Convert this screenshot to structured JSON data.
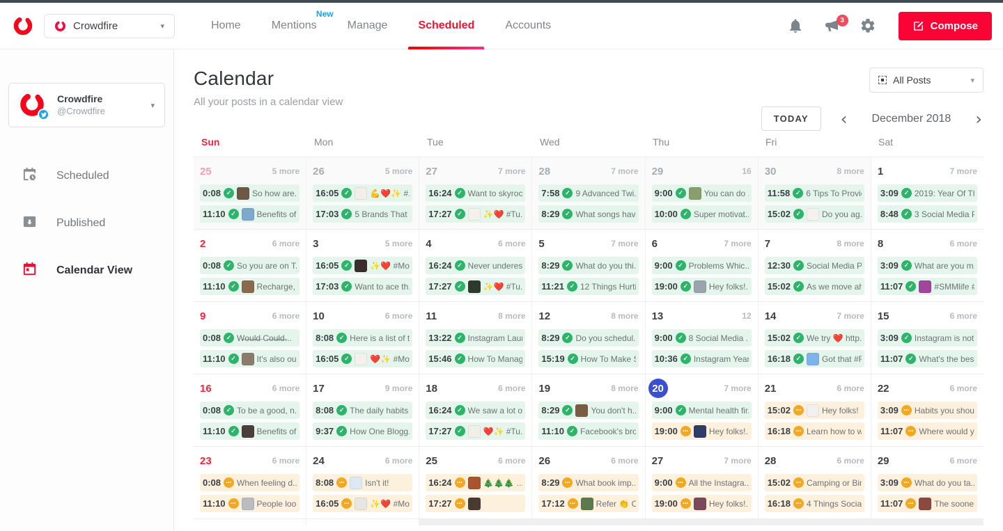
{
  "topbar": {
    "account_label": "Crowdfire",
    "nav": [
      {
        "label": "Home",
        "active": false
      },
      {
        "label": "Mentions",
        "active": false,
        "badge": "New"
      },
      {
        "label": "Manage",
        "active": false
      },
      {
        "label": "Scheduled",
        "active": true
      },
      {
        "label": "Accounts",
        "active": false
      }
    ],
    "announcements_badge": "3",
    "compose_label": "Compose"
  },
  "sidebar": {
    "account": {
      "name": "Crowdfire",
      "handle": "@Crowdfire"
    },
    "items": [
      {
        "label": "Scheduled",
        "icon": "calendar-clock-icon",
        "active": false
      },
      {
        "label": "Published",
        "icon": "published-box-icon",
        "active": false
      },
      {
        "label": "Calendar View",
        "icon": "calendar-icon",
        "active": true
      }
    ]
  },
  "header": {
    "title": "Calendar",
    "subtitle": "All your posts in a calendar view",
    "filter_label": "All Posts",
    "today_label": "TODAY",
    "prev_icon": "‹",
    "next_icon": "›",
    "month_label": "December 2018"
  },
  "calendar": {
    "day_headers": [
      "Sun",
      "Mon",
      "Tue",
      "Wed",
      "Thu",
      "Fri",
      "Sat"
    ],
    "weeks": [
      [
        {
          "date": "25",
          "kind": "muted-sun",
          "more": "5 more",
          "posts": [
            {
              "time": "0:08",
              "status": "done",
              "thumb": "#6b5846",
              "text": "So how are..."
            },
            {
              "time": "11:10",
              "status": "done",
              "thumb": "#7fa8cc",
              "text": "Benefits of r..."
            }
          ]
        },
        {
          "date": "26",
          "kind": "muted",
          "more": "5 more",
          "posts": [
            {
              "time": "16:05",
              "status": "done",
              "thumb": "#f2efe9",
              "text": "💪❤️✨ #..."
            },
            {
              "time": "17:03",
              "status": "done",
              "thumb": null,
              "text": "5 Brands That ..."
            }
          ]
        },
        {
          "date": "27",
          "kind": "muted",
          "more": "7 more",
          "posts": [
            {
              "time": "16:24",
              "status": "done",
              "thumb": null,
              "text": "Want to skyroc..."
            },
            {
              "time": "17:27",
              "status": "done",
              "thumb": "#f4f1ec",
              "text": "✨❤️ #Tu..."
            }
          ]
        },
        {
          "date": "28",
          "kind": "muted",
          "more": "7 more",
          "posts": [
            {
              "time": "7:58",
              "status": "done",
              "thumb": null,
              "text": "9 Advanced Twi..."
            },
            {
              "time": "8:29",
              "status": "done",
              "thumb": null,
              "text": "What songs hav..."
            }
          ]
        },
        {
          "date": "29",
          "kind": "muted",
          "more": "16",
          "posts": [
            {
              "time": "9:00",
              "status": "done",
              "thumb": "#8a9e6b",
              "text": "You can do ..."
            },
            {
              "time": "10:00",
              "status": "done",
              "thumb": null,
              "text": "Super motivat..."
            }
          ]
        },
        {
          "date": "30",
          "kind": "muted",
          "more": "8 more",
          "posts": [
            {
              "time": "11:58",
              "status": "done",
              "thumb": null,
              "text": "6 Tips To Provid..."
            },
            {
              "time": "15:02",
              "status": "done",
              "thumb": "#f5f2ee",
              "text": "Do you ag..."
            }
          ]
        },
        {
          "date": "1",
          "kind": "normal",
          "more": "7 more",
          "posts": [
            {
              "time": "3:09",
              "status": "done",
              "thumb": null,
              "text": "2019: Year Of Th..."
            },
            {
              "time": "8:48",
              "status": "done",
              "thumb": null,
              "text": "3 Social Media P..."
            }
          ]
        }
      ],
      [
        {
          "date": "2",
          "kind": "sun",
          "more": "6 more",
          "posts": [
            {
              "time": "0:08",
              "status": "done",
              "thumb": null,
              "text": "So you are on T..."
            },
            {
              "time": "11:10",
              "status": "done",
              "thumb": "#8a6a4f",
              "text": "Recharge, it..."
            }
          ]
        },
        {
          "date": "3",
          "kind": "normal",
          "more": "5 more",
          "posts": [
            {
              "time": "16:05",
              "status": "done",
              "thumb": "#3a2e2c",
              "text": "✨❤️ #Mo..."
            },
            {
              "time": "17:03",
              "status": "done",
              "thumb": null,
              "text": "Want to ace th..."
            }
          ]
        },
        {
          "date": "4",
          "kind": "normal",
          "more": "6 more",
          "posts": [
            {
              "time": "16:24",
              "status": "done",
              "thumb": null,
              "text": "Never underest..."
            },
            {
              "time": "17:27",
              "status": "done",
              "thumb": "#2f3a2e",
              "text": "✨❤️ #Tu..."
            }
          ]
        },
        {
          "date": "5",
          "kind": "normal",
          "more": "7 more",
          "posts": [
            {
              "time": "8:29",
              "status": "done",
              "thumb": null,
              "text": "What do you thi..."
            },
            {
              "time": "11:21",
              "status": "done",
              "thumb": null,
              "text": "12 Things Hurtin..."
            }
          ]
        },
        {
          "date": "6",
          "kind": "normal",
          "more": "7 more",
          "posts": [
            {
              "time": "9:00",
              "status": "done",
              "thumb": null,
              "text": "Problems Whic..."
            },
            {
              "time": "19:00",
              "status": "done",
              "thumb": "#9aa4ad",
              "text": "Hey folks!..."
            }
          ]
        },
        {
          "date": "7",
          "kind": "normal",
          "more": "8 more",
          "posts": [
            {
              "time": "12:30",
              "status": "done",
              "thumb": null,
              "text": "Social Media Pr..."
            },
            {
              "time": "15:02",
              "status": "done",
              "thumb": null,
              "text": "As we move ah..."
            }
          ]
        },
        {
          "date": "8",
          "kind": "normal",
          "more": "6 more",
          "posts": [
            {
              "time": "3:09",
              "status": "done",
              "thumb": null,
              "text": "What are you m..."
            },
            {
              "time": "11:07",
              "status": "done",
              "thumb": "#a1479b",
              "text": "#SMMlife #..."
            }
          ]
        }
      ],
      [
        {
          "date": "9",
          "kind": "sun",
          "more": "6 more",
          "posts": [
            {
              "time": "0:08",
              "status": "done",
              "thumb": null,
              "text": "W̶o̶u̶l̶d̶ C̶o̶u̶l̶d̶..."
            },
            {
              "time": "11:10",
              "status": "done",
              "thumb": "#8c7a6a",
              "text": "It's also our ..."
            }
          ]
        },
        {
          "date": "10",
          "kind": "normal",
          "more": "6 more",
          "posts": [
            {
              "time": "8:08",
              "status": "done",
              "thumb": null,
              "text": "Here is a list of t..."
            },
            {
              "time": "16:05",
              "status": "done",
              "thumb": "#f4f1ec",
              "text": "❤️✨ #Mo..."
            }
          ]
        },
        {
          "date": "11",
          "kind": "normal",
          "more": "8 more",
          "posts": [
            {
              "time": "13:22",
              "status": "done",
              "thumb": null,
              "text": "Instagram Laun..."
            },
            {
              "time": "15:46",
              "status": "done",
              "thumb": null,
              "text": "How To Manag..."
            }
          ]
        },
        {
          "date": "12",
          "kind": "normal",
          "more": "8 more",
          "posts": [
            {
              "time": "8:29",
              "status": "done",
              "thumb": null,
              "text": "Do you schedul..."
            },
            {
              "time": "15:19",
              "status": "done",
              "thumb": null,
              "text": "How To Make S..."
            }
          ]
        },
        {
          "date": "13",
          "kind": "normal",
          "more": "12",
          "posts": [
            {
              "time": "9:00",
              "status": "done",
              "thumb": null,
              "text": "8 Social Media ..."
            },
            {
              "time": "10:36",
              "status": "done",
              "thumb": null,
              "text": "Instagram Year ..."
            }
          ]
        },
        {
          "date": "14",
          "kind": "normal",
          "more": "7 more",
          "posts": [
            {
              "time": "15:02",
              "status": "done",
              "thumb": null,
              "text": "We try ❤️ http..."
            },
            {
              "time": "16:18",
              "status": "done",
              "thumb": "#7db3e8",
              "text": "Got that #F..."
            }
          ]
        },
        {
          "date": "15",
          "kind": "normal",
          "more": "6 more",
          "posts": [
            {
              "time": "3:09",
              "status": "done",
              "thumb": null,
              "text": "Instagram is not ..."
            },
            {
              "time": "11:07",
              "status": "done",
              "thumb": null,
              "text": "What's the best..."
            }
          ]
        }
      ],
      [
        {
          "date": "16",
          "kind": "sun",
          "more": "6 more",
          "posts": [
            {
              "time": "0:08",
              "status": "done",
              "thumb": null,
              "text": "To be a good, n..."
            },
            {
              "time": "11:10",
              "status": "done",
              "thumb": "#4a3f3a",
              "text": "Benefits of ..."
            }
          ]
        },
        {
          "date": "17",
          "kind": "normal",
          "more": "9 more",
          "posts": [
            {
              "time": "8:08",
              "status": "done",
              "thumb": null,
              "text": "The daily habits ..."
            },
            {
              "time": "9:37",
              "status": "done",
              "thumb": null,
              "text": "How One Blogg..."
            }
          ]
        },
        {
          "date": "18",
          "kind": "normal",
          "more": "6 more",
          "posts": [
            {
              "time": "16:24",
              "status": "done",
              "thumb": null,
              "text": "We saw a lot of..."
            },
            {
              "time": "17:27",
              "status": "done",
              "thumb": "#f2efe9",
              "text": "❤️✨ #Tu..."
            }
          ]
        },
        {
          "date": "19",
          "kind": "normal",
          "more": "8 more",
          "posts": [
            {
              "time": "8:29",
              "status": "done",
              "thumb": "#7a5c44",
              "text": "You don't h..."
            },
            {
              "time": "11:10",
              "status": "done",
              "thumb": null,
              "text": "Facebook's bro..."
            }
          ]
        },
        {
          "date": "20",
          "kind": "today",
          "more": "7 more",
          "posts": [
            {
              "time": "9:00",
              "status": "done",
              "thumb": null,
              "text": "Mental health fir..."
            },
            {
              "time": "19:00",
              "status": "pending",
              "thumb": "#2e3d66",
              "text": "Hey folks!..."
            }
          ]
        },
        {
          "date": "21",
          "kind": "normal",
          "more": "6 more",
          "posts": [
            {
              "time": "15:02",
              "status": "pending",
              "thumb": "#f2f0ec",
              "text": "Hey folks! ..."
            },
            {
              "time": "16:18",
              "status": "pending",
              "thumb": null,
              "text": "Learn how to w..."
            }
          ]
        },
        {
          "date": "22",
          "kind": "normal",
          "more": "6 more",
          "posts": [
            {
              "time": "3:09",
              "status": "pending",
              "thumb": null,
              "text": "Habits you shoul..."
            },
            {
              "time": "11:07",
              "status": "pending",
              "thumb": null,
              "text": "Where would y..."
            }
          ]
        }
      ],
      [
        {
          "date": "23",
          "kind": "sun",
          "more": "6 more",
          "posts": [
            {
              "time": "0:08",
              "status": "pending",
              "thumb": null,
              "text": "When feeling d..."
            },
            {
              "time": "11:10",
              "status": "pending",
              "thumb": "#b9bdbf",
              "text": "People look..."
            }
          ]
        },
        {
          "date": "24",
          "kind": "normal",
          "more": "6 more",
          "posts": [
            {
              "time": "8:08",
              "status": "pending",
              "thumb": "#dce8f2",
              "text": "Isn't it!"
            },
            {
              "time": "16:05",
              "status": "pending",
              "thumb": "#e8e6e0",
              "text": "✨❤️ #Mo..."
            }
          ]
        },
        {
          "date": "25",
          "kind": "normal",
          "more": "6 more",
          "posts": [
            {
              "time": "16:24",
              "status": "pending",
              "thumb": "#a8542c",
              "text": "🎄🎄🎄 ..."
            },
            {
              "time": "17:27",
              "status": "pending",
              "thumb": "#4a3a34",
              "text": ""
            }
          ]
        },
        {
          "date": "26",
          "kind": "normal",
          "more": "6 more",
          "posts": [
            {
              "time": "8:29",
              "status": "pending",
              "thumb": null,
              "text": "What book imp..."
            },
            {
              "time": "17:12",
              "status": "pending",
              "thumb": "#5c7a4e",
              "text": "Refer 👏 Cr..."
            }
          ]
        },
        {
          "date": "27",
          "kind": "normal",
          "more": "7 more",
          "posts": [
            {
              "time": "9:00",
              "status": "pending",
              "thumb": null,
              "text": "All the Instagra..."
            },
            {
              "time": "19:00",
              "status": "pending",
              "thumb": "#7a4a5a",
              "text": "Hey folks!..."
            }
          ]
        },
        {
          "date": "28",
          "kind": "normal",
          "more": "6 more",
          "posts": [
            {
              "time": "15:02",
              "status": "pending",
              "thumb": null,
              "text": "Camping or Bin..."
            },
            {
              "time": "16:18",
              "status": "pending",
              "thumb": null,
              "text": "4 Things Social ..."
            }
          ]
        },
        {
          "date": "29",
          "kind": "normal",
          "more": "6 more",
          "posts": [
            {
              "time": "3:09",
              "status": "pending",
              "thumb": null,
              "text": "What do you ta..."
            },
            {
              "time": "11:07",
              "status": "pending",
              "thumb": "#8a4a42",
              "text": "The sooner..."
            }
          ]
        }
      ]
    ],
    "partial_row": {
      "current_month_cols": 2,
      "next_month_bg": "#f0f0f0"
    }
  },
  "colors": {
    "accent_red": "#fa0436",
    "active_nav_red": "#f0142f",
    "sunday_red": "#f0263f",
    "today_blue": "#3b50ce",
    "done_green": "#2db36a",
    "done_bg": "#e4f6eb",
    "pending_orange": "#f3a821",
    "pending_bg": "#fdf1de",
    "new_badge_blue": "#1da1f2"
  }
}
